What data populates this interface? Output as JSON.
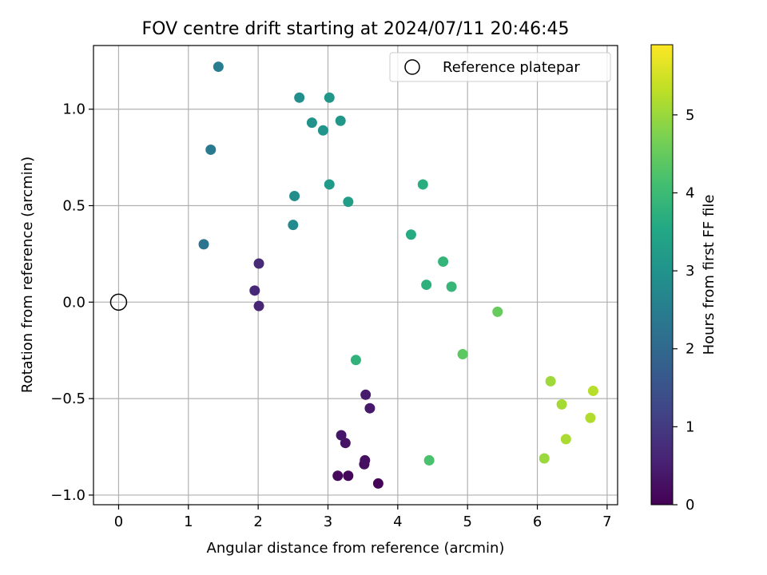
{
  "chart_data": {
    "type": "scatter",
    "title": "FOV centre drift starting at 2024/07/11 20:46:45",
    "xlabel": "Angular distance from reference (arcmin)",
    "ylabel": "Rotation from reference (arcmin)",
    "xlim": [
      -0.36,
      7.15
    ],
    "ylim": [
      -1.05,
      1.33
    ],
    "xticks": [
      0,
      1,
      2,
      3,
      4,
      5,
      6,
      7
    ],
    "xtick_labels": [
      "0",
      "1",
      "2",
      "3",
      "4",
      "5",
      "6",
      "7"
    ],
    "yticks": [
      -1.0,
      -0.5,
      0.0,
      0.5,
      1.0
    ],
    "ytick_labels": [
      "−1.0",
      "−0.5",
      "0.0",
      "0.5",
      "1.0"
    ],
    "grid": true,
    "legend": {
      "label": "Reference platepar",
      "location": "top-right"
    },
    "reference_point": {
      "x": 0,
      "y": 0
    },
    "colorbar": {
      "label": "Hours from first FF file",
      "colormap": "viridis",
      "range": [
        0,
        5.9
      ],
      "ticks": [
        0,
        1,
        2,
        3,
        4,
        5
      ],
      "tick_labels": [
        "0",
        "1",
        "2",
        "3",
        "4",
        "5"
      ]
    },
    "points": [
      {
        "x": 3.72,
        "y": -0.94,
        "hours": 0.05
      },
      {
        "x": 3.29,
        "y": -0.9,
        "hours": 0.1
      },
      {
        "x": 3.14,
        "y": -0.9,
        "hours": 0.15
      },
      {
        "x": 3.52,
        "y": -0.84,
        "hours": 0.2
      },
      {
        "x": 3.53,
        "y": -0.82,
        "hours": 0.25
      },
      {
        "x": 3.25,
        "y": -0.73,
        "hours": 0.3
      },
      {
        "x": 3.19,
        "y": -0.69,
        "hours": 0.35
      },
      {
        "x": 3.6,
        "y": -0.55,
        "hours": 0.4
      },
      {
        "x": 3.54,
        "y": -0.48,
        "hours": 0.45
      },
      {
        "x": 2.01,
        "y": -0.02,
        "hours": 0.6
      },
      {
        "x": 1.95,
        "y": 0.06,
        "hours": 0.65
      },
      {
        "x": 2.01,
        "y": 0.2,
        "hours": 0.7
      },
      {
        "x": 1.22,
        "y": 0.3,
        "hours": 2.3
      },
      {
        "x": 1.32,
        "y": 0.79,
        "hours": 2.4
      },
      {
        "x": 1.43,
        "y": 1.22,
        "hours": 2.5
      },
      {
        "x": 2.5,
        "y": 0.4,
        "hours": 2.8
      },
      {
        "x": 2.52,
        "y": 0.55,
        "hours": 2.85
      },
      {
        "x": 2.59,
        "y": 1.06,
        "hours": 2.9
      },
      {
        "x": 2.77,
        "y": 0.93,
        "hours": 3.0
      },
      {
        "x": 2.93,
        "y": 0.89,
        "hours": 3.05
      },
      {
        "x": 3.02,
        "y": 1.06,
        "hours": 3.1
      },
      {
        "x": 3.18,
        "y": 0.94,
        "hours": 3.1
      },
      {
        "x": 3.02,
        "y": 0.61,
        "hours": 3.2
      },
      {
        "x": 3.29,
        "y": 0.52,
        "hours": 3.25
      },
      {
        "x": 3.4,
        "y": -0.3,
        "hours": 3.8
      },
      {
        "x": 4.19,
        "y": 0.35,
        "hours": 3.6
      },
      {
        "x": 4.36,
        "y": 0.61,
        "hours": 3.7
      },
      {
        "x": 4.41,
        "y": 0.09,
        "hours": 3.75
      },
      {
        "x": 4.65,
        "y": 0.21,
        "hours": 3.85
      },
      {
        "x": 4.77,
        "y": 0.08,
        "hours": 3.9
      },
      {
        "x": 4.45,
        "y": -0.82,
        "hours": 4.2
      },
      {
        "x": 4.93,
        "y": -0.27,
        "hours": 4.4
      },
      {
        "x": 5.43,
        "y": -0.05,
        "hours": 4.5
      },
      {
        "x": 6.19,
        "y": -0.41,
        "hours": 5.05
      },
      {
        "x": 6.35,
        "y": -0.53,
        "hours": 5.1
      },
      {
        "x": 6.41,
        "y": -0.71,
        "hours": 5.15
      },
      {
        "x": 6.1,
        "y": -0.81,
        "hours": 5.0
      },
      {
        "x": 6.76,
        "y": -0.6,
        "hours": 5.2
      },
      {
        "x": 6.8,
        "y": -0.46,
        "hours": 5.25
      }
    ]
  }
}
